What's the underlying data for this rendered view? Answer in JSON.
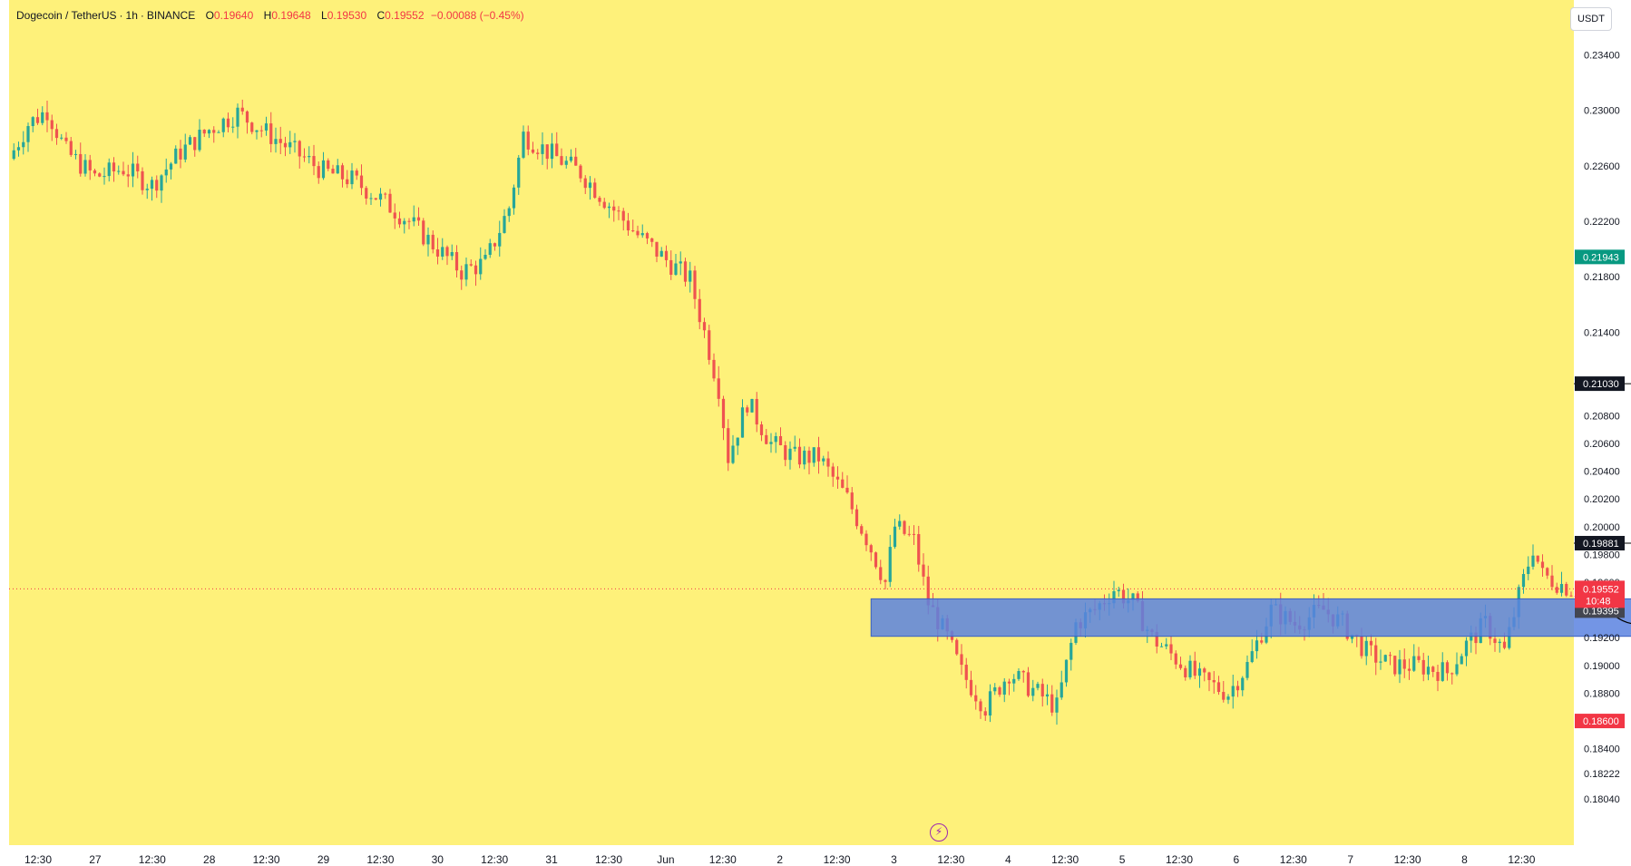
{
  "header": {
    "symbol": "Dogecoin / TetherUS",
    "interval": "1h",
    "exchange": "BINANCE",
    "o_label": "O",
    "o_value": "0.19640",
    "h_label": "H",
    "h_value": "0.19648",
    "l_label": "L",
    "l_value": "0.19530",
    "c_label": "C",
    "c_value": "0.19552",
    "change": "−0.00088 (−0.45%)"
  },
  "currency_button": "USDT",
  "chart_data": {
    "type": "candlestick",
    "symbol": "DOGEUSDT",
    "x_ticks": [
      "12:30",
      "27",
      "12:30",
      "28",
      "12:30",
      "29",
      "12:30",
      "30",
      "12:30",
      "31",
      "12:30",
      "Jun",
      "12:30",
      "2",
      "12:30",
      "3",
      "12:30",
      "4",
      "12:30",
      "5",
      "12:30",
      "6",
      "12:30",
      "7",
      "12:30",
      "8",
      "12:30"
    ],
    "y_ticks": [
      "0.23400",
      "0.23000",
      "0.22600",
      "0.22200",
      "0.21800",
      "0.21400",
      "0.20800",
      "0.20600",
      "0.20400",
      "0.20200",
      "0.20000",
      "0.19800",
      "0.19600",
      "0.19200",
      "0.19000",
      "0.18800",
      "0.18400",
      "0.18222",
      "0.18040"
    ],
    "ylim": [
      0.1795,
      0.2365
    ],
    "bars_per_day": 24,
    "close_path": [
      [
        0,
        0.2265
      ],
      [
        4,
        0.229
      ],
      [
        8,
        0.23
      ],
      [
        12,
        0.227
      ],
      [
        18,
        0.2252
      ],
      [
        24,
        0.2258
      ],
      [
        30,
        0.2246
      ],
      [
        36,
        0.227
      ],
      [
        42,
        0.2286
      ],
      [
        48,
        0.2298
      ],
      [
        54,
        0.2284
      ],
      [
        60,
        0.227
      ],
      [
        66,
        0.2256
      ],
      [
        72,
        0.225
      ],
      [
        78,
        0.2236
      ],
      [
        84,
        0.222
      ],
      [
        90,
        0.22
      ],
      [
        95,
        0.2184
      ],
      [
        100,
        0.219
      ],
      [
        105,
        0.223
      ],
      [
        108,
        0.2282
      ],
      [
        114,
        0.2268
      ],
      [
        120,
        0.2255
      ],
      [
        126,
        0.2232
      ],
      [
        132,
        0.221
      ],
      [
        138,
        0.2192
      ],
      [
        143,
        0.2178
      ],
      [
        146,
        0.214
      ],
      [
        149,
        0.21
      ],
      [
        151,
        0.205
      ],
      [
        155,
        0.209
      ],
      [
        160,
        0.206
      ],
      [
        165,
        0.205
      ],
      [
        170,
        0.205
      ],
      [
        176,
        0.202
      ],
      [
        180,
        0.1992
      ],
      [
        184,
        0.196
      ],
      [
        186,
        0.2
      ],
      [
        190,
        0.199
      ],
      [
        193,
        0.1945
      ],
      [
        197,
        0.192
      ],
      [
        200,
        0.1895
      ],
      [
        205,
        0.187
      ],
      [
        210,
        0.1895
      ],
      [
        216,
        0.188
      ],
      [
        220,
        0.187
      ],
      [
        224,
        0.193
      ],
      [
        228,
        0.194
      ],
      [
        232,
        0.1955
      ],
      [
        236,
        0.1945
      ],
      [
        240,
        0.192
      ],
      [
        245,
        0.1905
      ],
      [
        250,
        0.189
      ],
      [
        256,
        0.188
      ],
      [
        260,
        0.19
      ],
      [
        265,
        0.194
      ],
      [
        270,
        0.193
      ],
      [
        276,
        0.194
      ],
      [
        280,
        0.193
      ],
      [
        285,
        0.191
      ],
      [
        290,
        0.19
      ],
      [
        296,
        0.19
      ],
      [
        302,
        0.1895
      ],
      [
        306,
        0.1915
      ],
      [
        310,
        0.193
      ],
      [
        314,
        0.191
      ],
      [
        317,
        0.195
      ],
      [
        320,
        0.1985
      ],
      [
        322,
        0.1965
      ],
      [
        325,
        0.196
      ],
      [
        328,
        0.1955
      ],
      [
        330,
        0.1955
      ]
    ],
    "current_price": "0.19552",
    "countdown": "10:48",
    "demand_zone": {
      "from_bar": 181,
      "to_bar": 382,
      "low": 0.1921,
      "high": 0.1948
    },
    "position": {
      "from_bar": 347,
      "to_bar": 412,
      "entry": "0.19395",
      "target": "0.21943",
      "stop": "0.18600",
      "tp1": "0.19881",
      "tp2": "0.21030",
      "callout_values": [
        "0.21943",
        "0.21030",
        "0.19881",
        "0.18600"
      ],
      "axis_labels": [
        "0.21943",
        "0.21030",
        "0.19881",
        "0.19395",
        "0.18600"
      ]
    },
    "projection": {
      "from_bar": 330,
      "entry_bar": 345,
      "entry_price": 0.1936,
      "to_bar": 397,
      "to_price": 0.2195
    },
    "colors": {
      "background": "#fef17a",
      "up": "#26a69a",
      "down": "#ef5350",
      "zone": "#5b82e0",
      "profit": "#8fcf45",
      "loss": "#ff8c3a",
      "callout_green": "#4caf50",
      "callout_red": "#f23645",
      "axis_green": "#089981",
      "axis_red": "#f23645",
      "axis_dark": "#131722",
      "axis_grey": "#434651"
    }
  }
}
